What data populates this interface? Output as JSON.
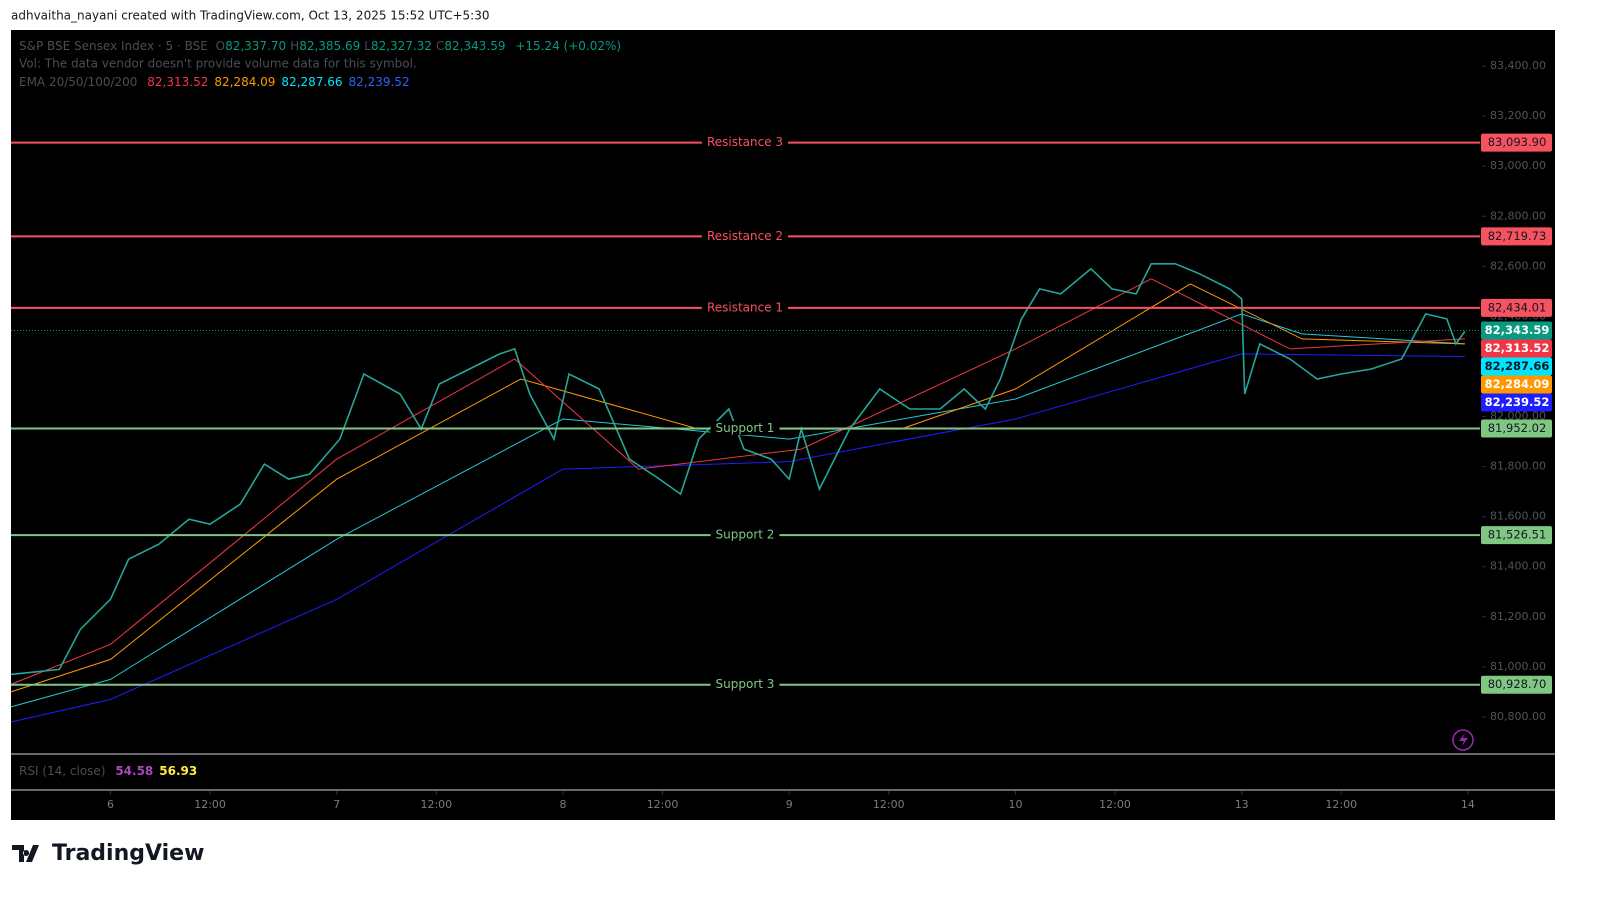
{
  "page": {
    "credit": "adhvaitha_nayani created with TradingView.com, Oct 13, 2025 15:52 UTC+5:30",
    "logo": "TradingView"
  },
  "legend": {
    "symbol": "S&P BSE Sensex Index · 5 · BSE",
    "ohlc": [
      {
        "key": "O",
        "value": "82,337.70"
      },
      {
        "key": "H",
        "value": "82,385.69"
      },
      {
        "key": "L",
        "value": "82,327.32"
      },
      {
        "key": "C",
        "value": "82,343.59"
      }
    ],
    "change": "+15.24 (+0.02%)",
    "volume": "Vol: The data vendor doesn't provide volume data for this symbol.",
    "ema_label": "EMA 20/50/100/200",
    "ema_values": [
      {
        "text": "82,313.52",
        "color": "#f23645"
      },
      {
        "text": "82,284.09",
        "color": "#ff9800"
      },
      {
        "text": "82,287.66",
        "color": "#00e5ff"
      },
      {
        "text": "82,239.52",
        "color": "#2962ff"
      }
    ],
    "rsi_label": "RSI (14, close)",
    "rsi_values": [
      {
        "text": "54.58",
        "color": "#ab47bc"
      },
      {
        "text": "56.93",
        "color": "#ffeb3b"
      }
    ]
  },
  "chart_data": {
    "type": "line",
    "xlim": [
      -33,
      454
    ],
    "xticks": [
      {
        "value": 0,
        "label": "6"
      },
      {
        "value": 33,
        "label": "12:00"
      },
      {
        "value": 75,
        "label": "7"
      },
      {
        "value": 108,
        "label": "12:00"
      },
      {
        "value": 150,
        "label": "8"
      },
      {
        "value": 183,
        "label": "12:00"
      },
      {
        "value": 225,
        "label": "9"
      },
      {
        "value": 258,
        "label": "12:00"
      },
      {
        "value": 300,
        "label": "10"
      },
      {
        "value": 333,
        "label": "12:00"
      },
      {
        "value": 375,
        "label": "13"
      },
      {
        "value": 408,
        "label": "12:00"
      },
      {
        "value": 450,
        "label": "14"
      }
    ],
    "ylim": [
      80656,
      83544
    ],
    "yticks": [
      {
        "value": 80800,
        "label": "80,800.00"
      },
      {
        "value": 81000,
        "label": "81,000.00"
      },
      {
        "value": 81200,
        "label": "81,200.00"
      },
      {
        "value": 81400,
        "label": "81,400.00"
      },
      {
        "value": 81600,
        "label": "81,600.00"
      },
      {
        "value": 81800,
        "label": "81,800.00"
      },
      {
        "value": 82000,
        "label": "82,000.00"
      },
      {
        "value": 82200,
        "label": "82,200.00"
      },
      {
        "value": 82400,
        "label": "82,400.00"
      },
      {
        "value": 82600,
        "label": "82,600.00"
      },
      {
        "value": 82800,
        "label": "82,800.00"
      },
      {
        "value": 83000,
        "label": "83,000.00"
      },
      {
        "value": 83200,
        "label": "83,200.00"
      },
      {
        "value": 83400,
        "label": "83,400.00"
      }
    ],
    "series": [
      {
        "color": "#26a69a",
        "width": 1.6,
        "x": [
          -33,
          -17,
          -10,
          0,
          6,
          16,
          26,
          33,
          43,
          51,
          59,
          66,
          76,
          84,
          96,
          103,
          109,
          119,
          129,
          134,
          139,
          147,
          152,
          162,
          172,
          182,
          189,
          195,
          205,
          210,
          219,
          225,
          229,
          235,
          245,
          255,
          265,
          275,
          283,
          290,
          295,
          302,
          308,
          315,
          325,
          332,
          340,
          345,
          353,
          361,
          371,
          375,
          376,
          381,
          391,
          400,
          408,
          418,
          428,
          436,
          443,
          446,
          449
        ],
        "values": [
          80970,
          80990,
          81150,
          81270,
          81430,
          81490,
          81590,
          81570,
          81650,
          81810,
          81750,
          81770,
          81910,
          82170,
          82090,
          81950,
          82130,
          82190,
          82250,
          82270,
          82090,
          81910,
          82170,
          82110,
          81830,
          81750,
          81690,
          81910,
          82030,
          81870,
          81830,
          81750,
          81950,
          81710,
          81950,
          82110,
          82030,
          82030,
          82110,
          82030,
          82150,
          82390,
          82510,
          82490,
          82590,
          82510,
          82490,
          82610,
          82610,
          82570,
          82510,
          82470,
          82090,
          82290,
          82230,
          82150,
          82170,
          82190,
          82230,
          82410,
          82390,
          82290,
          82340
        ]
      },
      {
        "color": "#f23645",
        "width": 1,
        "x": [
          -33,
          0,
          75,
          134,
          175,
          229,
          300,
          345,
          391,
          449
        ],
        "values": [
          80930,
          81090,
          81830,
          82230,
          81790,
          81870,
          82270,
          82550,
          82270,
          82310
        ]
      },
      {
        "color": "#ff9800",
        "width": 1,
        "x": [
          -33,
          0,
          75,
          136,
          195,
          262,
          300,
          358,
          395,
          449
        ],
        "values": [
          80900,
          81030,
          81750,
          82150,
          81950,
          81950,
          82110,
          82530,
          82310,
          82290
        ]
      },
      {
        "color": "#26c6da",
        "width": 1,
        "x": [
          -33,
          0,
          75,
          150,
          225,
          300,
          375,
          395,
          449
        ],
        "values": [
          80840,
          80950,
          81510,
          81990,
          81910,
          82070,
          82410,
          82330,
          82290
        ]
      },
      {
        "color": "#1e1eff",
        "width": 1,
        "x": [
          -33,
          0,
          75,
          150,
          225,
          300,
          375,
          449
        ],
        "values": [
          80780,
          80870,
          81270,
          81790,
          81820,
          81990,
          82250,
          82240
        ]
      }
    ],
    "levels": [
      {
        "label": "Resistance 3",
        "value": 83093.9,
        "value_label": "83,093.90",
        "color": "#f7525f"
      },
      {
        "label": "Resistance 2",
        "value": 82719.73,
        "value_label": "82,719.73",
        "color": "#f7525f"
      },
      {
        "label": "Resistance 1",
        "value": 82434.01,
        "value_label": "82,434.01",
        "color": "#f7525f"
      },
      {
        "label": "Support 1",
        "value": 81952.02,
        "value_label": "81,952.02",
        "color": "#81c784"
      },
      {
        "label": "Support 2",
        "value": 81526.51,
        "value_label": "81,526.51",
        "color": "#81c784"
      },
      {
        "label": "Support 3",
        "value": 80928.7,
        "value_label": "80,928.70",
        "color": "#81c784"
      }
    ],
    "price_tags": [
      {
        "value": 82343.59,
        "label": "82,343.59",
        "color": "#089981",
        "text_color": "#ffffff"
      },
      {
        "value": 82313.52,
        "label": "82,313.52",
        "color": "#f23645",
        "text_color": "#ffffff"
      },
      {
        "value": 82287.66,
        "label": "82,287.66",
        "color": "#00e5ff",
        "text_color": "#131722"
      },
      {
        "value": 82284.09,
        "label": "82,284.09",
        "color": "#ff9800",
        "text_color": "#ffffff"
      },
      {
        "value": 82239.52,
        "label": "82,239.52",
        "color": "#1e1eff",
        "text_color": "#ffffff"
      }
    ]
  }
}
